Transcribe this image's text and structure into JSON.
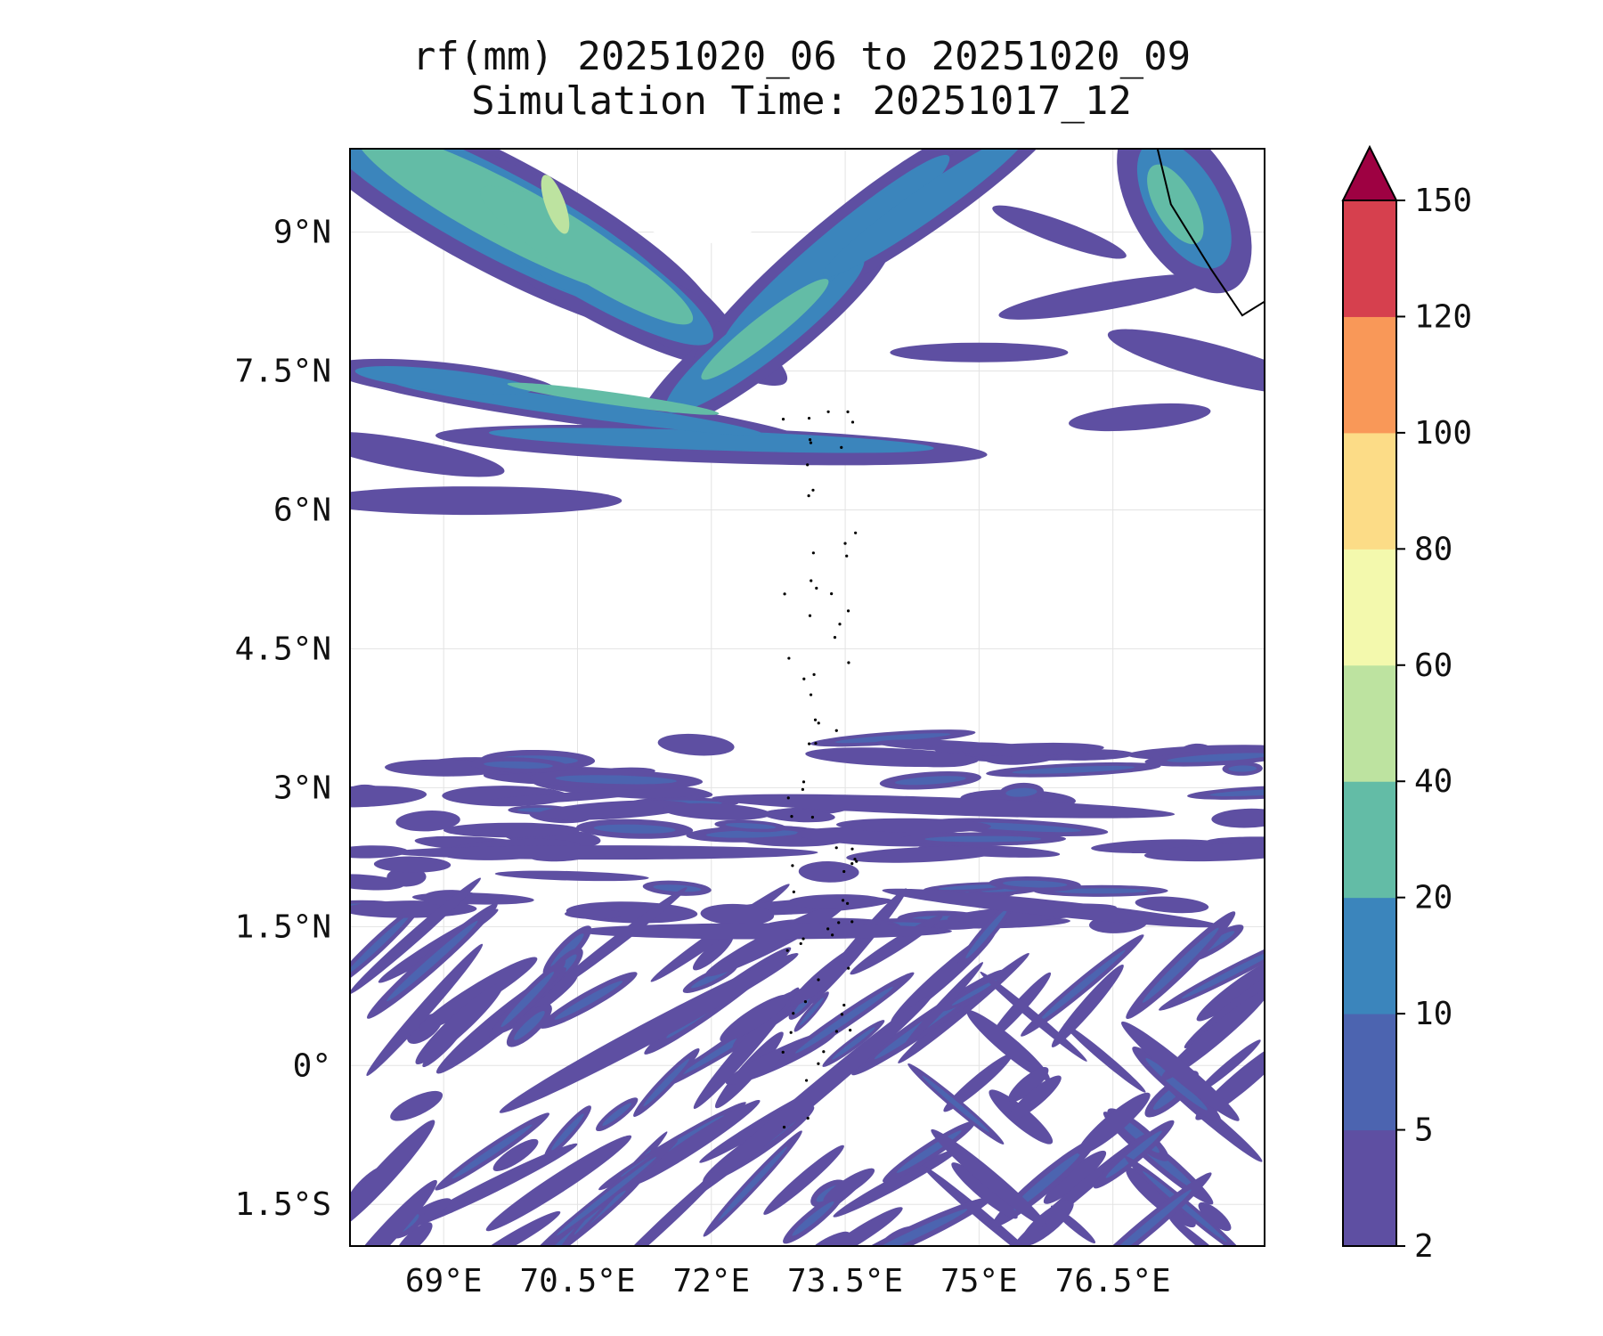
{
  "title": {
    "line1": "rf(mm) 20251020_06 to 20251020_09",
    "line2": "Simulation Time: 20251017_12"
  },
  "map": {
    "lon_range": [
      67.95,
      78.2
    ],
    "lat_range": [
      -1.95,
      9.9
    ],
    "x_ticks": [
      {
        "value": 69.0,
        "label": "69°E"
      },
      {
        "value": 70.5,
        "label": "70.5°E"
      },
      {
        "value": 72.0,
        "label": "72°E"
      },
      {
        "value": 73.5,
        "label": "73.5°E"
      },
      {
        "value": 75.0,
        "label": "75°E"
      },
      {
        "value": 76.5,
        "label": "76.5°E"
      }
    ],
    "y_ticks": [
      {
        "value": 9.0,
        "label": "9°N"
      },
      {
        "value": 7.5,
        "label": "7.5°N"
      },
      {
        "value": 6.0,
        "label": "6°N"
      },
      {
        "value": 4.5,
        "label": "4.5°N"
      },
      {
        "value": 3.0,
        "label": "3°N"
      },
      {
        "value": 1.5,
        "label": "1.5°N"
      },
      {
        "value": 0.0,
        "label": "0°"
      },
      {
        "value": -1.5,
        "label": "1.5°S"
      }
    ]
  },
  "colorbar": {
    "bounds": [
      "2",
      "5",
      "10",
      "20",
      "40",
      "60",
      "80",
      "100",
      "120",
      "150"
    ],
    "colors": [
      "#5e4fa2",
      "#4c64b0",
      "#3b85bc",
      "#63bca6",
      "#bde3a0",
      "#f3f9ad",
      "#fcdc87",
      "#f99858",
      "#d6404e"
    ],
    "extend_color": "#9e0142"
  },
  "rain_colors": {
    "c1": "#5e4fa2",
    "c2": "#4c64b0",
    "c3": "#3b85bc",
    "c4": "#63bca6",
    "c5": "#bde3a0"
  },
  "chart_data": {
    "type": "heatmap",
    "title": "rf(mm) 20251020_06 to 20251020_09",
    "subtitle": "Simulation Time: 20251017_12",
    "variable": "rf(mm)",
    "levels": [
      2,
      5,
      10,
      20,
      40,
      60,
      80,
      100,
      120,
      150
    ],
    "xlim": [
      67.95,
      78.2
    ],
    "ylim": [
      -1.95,
      9.9
    ],
    "xticks": [
      69.0,
      70.5,
      72.0,
      73.5,
      75.0,
      76.5
    ],
    "yticks": [
      9.0,
      7.5,
      6.0,
      4.5,
      3.0,
      1.5,
      0.0,
      -1.5
    ],
    "features": [
      {
        "region": "northwest band",
        "lon": [
          68.0,
          71.5
        ],
        "lat": [
          8.3,
          9.9
        ],
        "max_level_mm": "40-60"
      },
      {
        "region": "north central bands",
        "lon": [
          70.0,
          74.5
        ],
        "lat": [
          7.4,
          9.9
        ],
        "max_level_mm": "20-40"
      },
      {
        "region": "south of 3.5N scattered bands",
        "lon": [
          68.0,
          78.2
        ],
        "lat": [
          -1.95,
          3.5
        ],
        "max_level_mm": "5-10"
      },
      {
        "region": "northeast near India",
        "lon": [
          76.8,
          78.2
        ],
        "lat": [
          8.5,
          9.9
        ],
        "max_level_mm": "20-40"
      }
    ]
  }
}
